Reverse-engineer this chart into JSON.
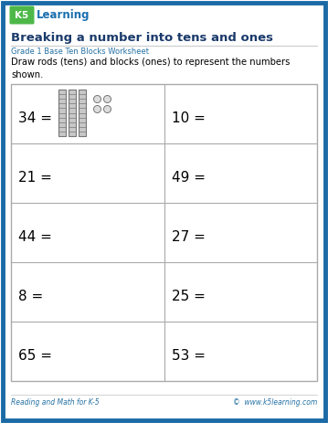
{
  "title": "Breaking a number into tens and ones",
  "subtitle": "Grade 1 Base Ten Blocks Worksheet",
  "instruction": "Draw rods (tens) and blocks (ones) to represent the numbers\nshown.",
  "numbers": [
    [
      "34 =",
      "10 ="
    ],
    [
      "21 =",
      "49 ="
    ],
    [
      "44 =",
      "27 ="
    ],
    [
      "8 =",
      "25 ="
    ],
    [
      "65 =",
      "53 ="
    ]
  ],
  "bg_color": "#ffffff",
  "border_color": "#1b6aa5",
  "title_color": "#1a3a6b",
  "subtitle_color": "#2471a3",
  "grid_color": "#aaaaaa",
  "footer_text_left": "Reading and Math for K-5",
  "footer_text_right": "©  www.k5learning.com",
  "footer_color": "#2471a3",
  "num_color": "#000000",
  "num_fontsize": 11,
  "logo_green": "#4db848",
  "logo_blue": "#1a6faf"
}
